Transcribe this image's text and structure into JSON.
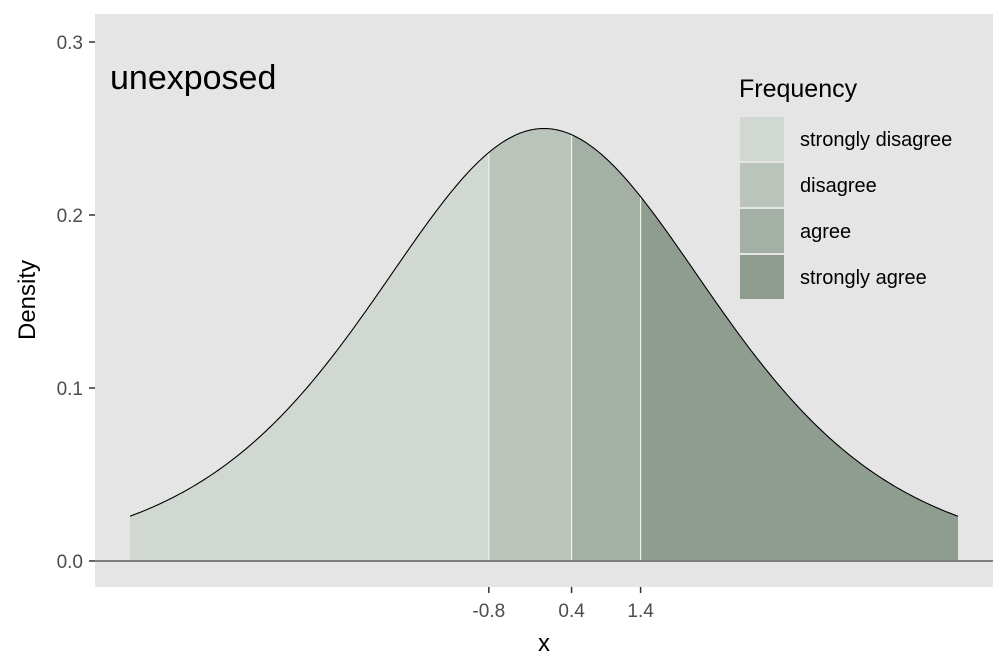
{
  "chart_data": {
    "type": "area",
    "title": "",
    "panel_label": "unexposed",
    "xlabel": "x",
    "ylabel": "Density",
    "xlim": [
      -2.6,
      4.6
    ],
    "ylim": [
      0,
      0.3
    ],
    "distribution": {
      "name": "logistic",
      "location": 0.0,
      "scale": 1.0
    },
    "curve_x_range": [
      -3.6,
      3.6
    ],
    "y_ticks": [
      0.0,
      0.1,
      0.2,
      0.3
    ],
    "y_tick_labels": [
      "0.0",
      "0.1",
      "0.2",
      "0.3"
    ],
    "x_ticks": [
      -0.8,
      0.4,
      1.4
    ],
    "x_tick_labels": [
      "-0.8",
      "0.4",
      "1.4"
    ],
    "thresholds": [
      -0.48,
      0.24,
      0.84
    ],
    "regions": [
      {
        "name": "strongly disagree",
        "color": "#d1d7d1"
      },
      {
        "name": "disagree",
        "color": "#bac4bb"
      },
      {
        "name": "agree",
        "color": "#a4b0a5"
      },
      {
        "name": "strongly agree",
        "color": "#8e9d8f"
      }
    ],
    "legend": {
      "title": "Frequency",
      "position": "top-right"
    },
    "grid": false,
    "panel_background": "#e5e5e5"
  }
}
